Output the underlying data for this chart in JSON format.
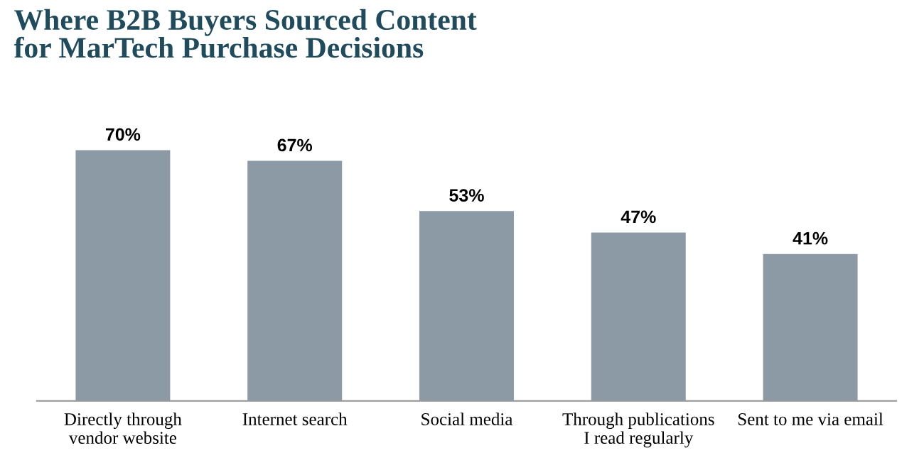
{
  "chart_data": {
    "type": "bar",
    "title": "Where B2B Buyers Sourced Content\nfor MarTech Purchase Decisions",
    "categories": [
      "Directly through\nvendor website",
      "Internet search",
      "Social media",
      "Through publications\nI read regularly",
      "Sent to me via email"
    ],
    "values": [
      70,
      67,
      53,
      47,
      41
    ],
    "value_labels": [
      "70%",
      "67%",
      "53%",
      "47%",
      "41%"
    ],
    "color": "#8c9aa5"
  }
}
